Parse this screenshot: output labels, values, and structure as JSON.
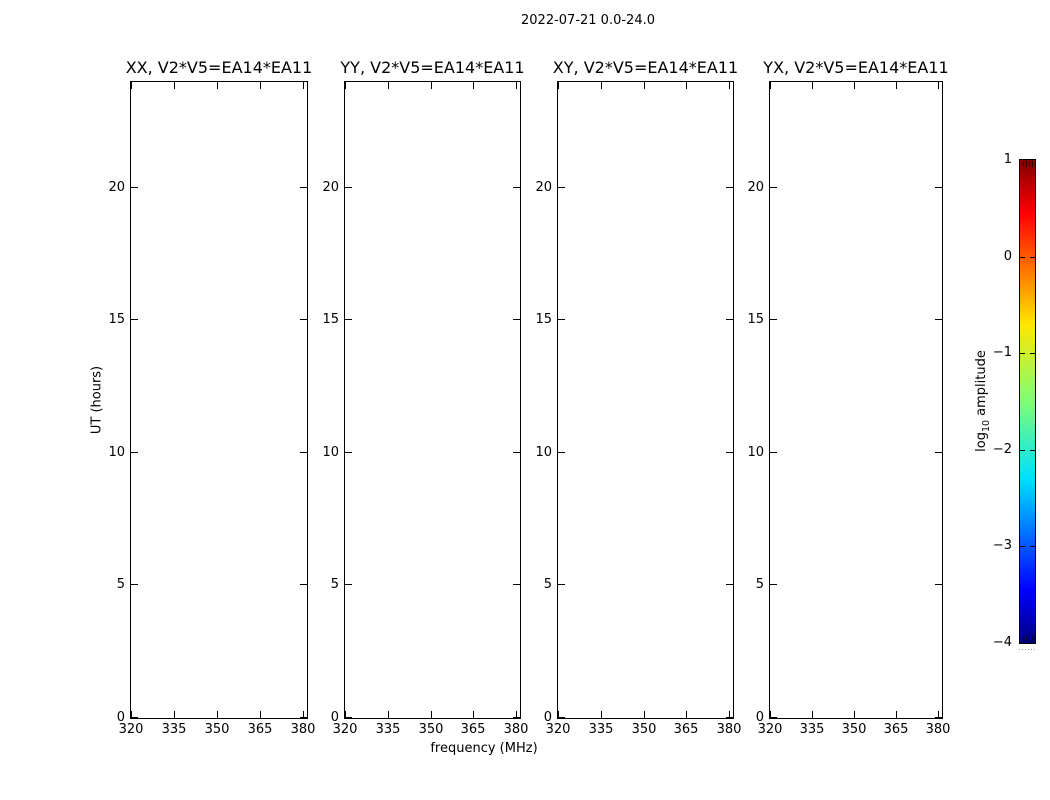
{
  "figure": {
    "suptitle": "2022-07-21 0.0-24.0",
    "xlabel": "frequency (MHz)",
    "ylabel": "UT (hours)",
    "background_color": "#ffffff",
    "axis_color": "#000000"
  },
  "panels": [
    {
      "id": "XX",
      "title": "XX, V2*V5=EA14*EA11"
    },
    {
      "id": "YY",
      "title": "YY, V2*V5=EA14*EA11"
    },
    {
      "id": "XY",
      "title": "XY, V2*V5=EA14*EA11"
    },
    {
      "id": "YX",
      "title": "YX, V2*V5=EA14*EA11"
    }
  ],
  "axes": {
    "x_ticks": [
      320,
      335,
      350,
      365,
      380
    ],
    "y_ticks": [
      0,
      5,
      10,
      15,
      20
    ],
    "xlim": [
      320,
      381.3
    ],
    "ylim": [
      0,
      24
    ]
  },
  "colorbar": {
    "label_prefix": "log",
    "label_sub": "10",
    "label_suffix": " amplitude",
    "ticks": [
      1,
      0,
      -1,
      -2,
      -3,
      -4
    ],
    "tick_labels": [
      "1",
      "0",
      "−1",
      "−2",
      "−3",
      "−4"
    ],
    "vmax": 1,
    "vmin": -4,
    "colormap": "jet",
    "gradient_stops": [
      "#00007f",
      "#0000ff",
      "#00dfff",
      "#7dff75",
      "#ffe600",
      "#ff0000",
      "#7f0000"
    ],
    "gradient_positions": [
      0,
      11,
      34,
      50,
      66,
      89,
      100
    ]
  },
  "chart_data": {
    "type": "heatmap",
    "suptitle": "2022-07-21 0.0-24.0",
    "xlabel": "frequency (MHz)",
    "ylabel": "UT (hours)",
    "x_ticks": [
      320,
      335,
      350,
      365,
      380
    ],
    "xlim": [
      320,
      381.3
    ],
    "y_ticks": [
      0,
      5,
      10,
      15,
      20
    ],
    "ylim": [
      0,
      24
    ],
    "grid": false,
    "legend": false,
    "subplots": [
      {
        "title": "XX, V2*V5=EA14*EA11",
        "values": []
      },
      {
        "title": "YY, V2*V5=EA14*EA11",
        "values": []
      },
      {
        "title": "XY, V2*V5=EA14*EA11",
        "values": []
      },
      {
        "title": "YX, V2*V5=EA14*EA11",
        "values": []
      }
    ],
    "colorbar": {
      "label": "log10 amplitude",
      "range": [
        -4,
        1
      ],
      "ticks": [
        1,
        0,
        -1,
        -2,
        -3,
        -4
      ],
      "colormap": "jet"
    },
    "note": "all four panels are empty (no data rendered)"
  }
}
